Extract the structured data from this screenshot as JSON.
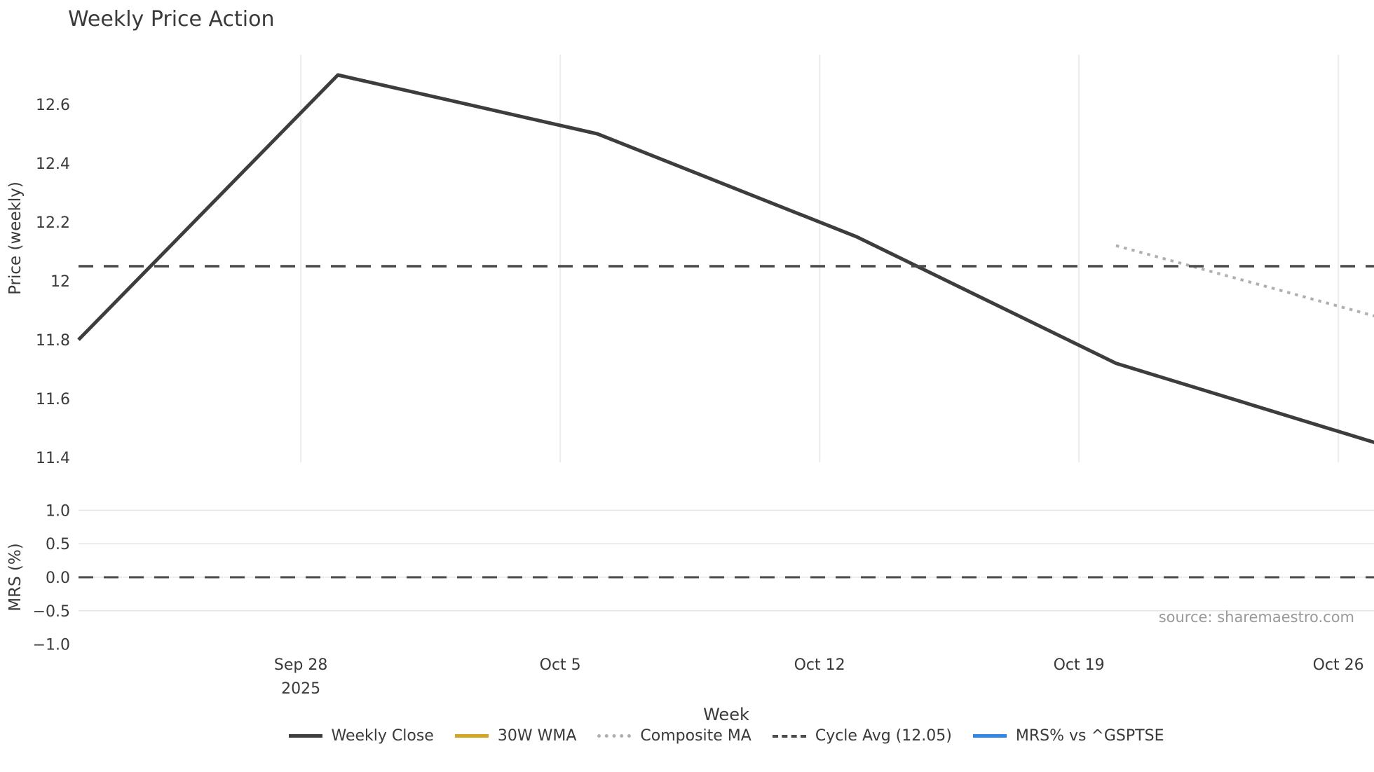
{
  "chart_data": {
    "type": "line",
    "title": "Weekly Price Action",
    "xlabel": "Week",
    "source": "source: sharemaestro.com",
    "x_unit": "days since week of Sep 22 2025",
    "x_ticks": [
      {
        "day": 6,
        "lines": [
          "Sep 28",
          "2025"
        ]
      },
      {
        "day": 13,
        "lines": [
          "Oct 5"
        ]
      },
      {
        "day": 20,
        "lines": [
          "Oct 12"
        ]
      },
      {
        "day": 27,
        "lines": [
          "Oct 19"
        ]
      },
      {
        "day": 34,
        "lines": [
          "Oct 26"
        ]
      }
    ],
    "panels": [
      {
        "id": "price",
        "ylabel": "Price (weekly)",
        "ylim": [
          11.39,
          12.77
        ],
        "grid": "vertical",
        "y_ticks": [
          {
            "value": 12.6,
            "label": "12.6"
          },
          {
            "value": 12.4,
            "label": "12.4"
          },
          {
            "value": 12.2,
            "label": "12.2"
          },
          {
            "value": 12.0,
            "label": "12"
          },
          {
            "value": 11.8,
            "label": "11.8"
          },
          {
            "value": 11.6,
            "label": "11.6"
          },
          {
            "value": 11.4,
            "label": "11.4"
          }
        ],
        "series": [
          {
            "name": "Weekly Close",
            "kind": "line",
            "style": "solid",
            "color": "#3d3d3d",
            "width": 5,
            "x_days": [
              0,
              7,
              14,
              21,
              28,
              35
            ],
            "x_weeks": [
              "Sep 22",
              "Sep 29",
              "Oct 6",
              "Oct 13",
              "Oct 20",
              "Oct 27"
            ],
            "values": [
              11.8,
              12.7,
              12.5,
              12.15,
              11.72,
              11.45
            ]
          },
          {
            "name": "Composite MA",
            "kind": "line",
            "style": "dotted",
            "color": "#b0b0b0",
            "width": 4,
            "x_days": [
              28,
              35
            ],
            "x_weeks": [
              "Oct 20",
              "Oct 27"
            ],
            "values": [
              12.12,
              11.88
            ]
          },
          {
            "name": "Cycle Avg",
            "kind": "hline",
            "style": "dashed",
            "color": "#4a4a4a",
            "width": 3.5,
            "value": 12.05
          }
        ]
      },
      {
        "id": "mrs",
        "ylabel": "MRS (%)",
        "ylim": [
          -1.15,
          1.15
        ],
        "grid": "horizontal",
        "y_ticks": [
          {
            "value": 1.0,
            "label": "1.0",
            "gridline": true
          },
          {
            "value": 0.5,
            "label": "0.5",
            "gridline": true
          },
          {
            "value": 0.0,
            "label": "0.0",
            "gridline": true
          },
          {
            "value": -0.5,
            "label": "−0.5",
            "gridline": true
          },
          {
            "value": -1.0,
            "label": "−1.0",
            "gridline": false
          }
        ],
        "series": [
          {
            "name": "Zero line",
            "kind": "hline",
            "style": "dashed",
            "color": "#4a4a4a",
            "width": 3,
            "value": 0.0
          }
        ]
      }
    ],
    "legend": [
      {
        "label": "Weekly Close",
        "style": "solid",
        "color": "#3d3d3d"
      },
      {
        "label": "30W WMA",
        "style": "solid",
        "color": "#d4a520"
      },
      {
        "label": "Composite MA",
        "style": "dotted",
        "color": "#b0b0b0"
      },
      {
        "label": "Cycle Avg (12.05)",
        "style": "dashed",
        "color": "#4a4a4a"
      },
      {
        "label": "MRS% vs ^GSPTSE",
        "style": "solid",
        "color": "#2f86e6"
      }
    ],
    "colors": {
      "text": "#3a3a3a",
      "grid_vertical": "#ececec",
      "grid_horizontal": "#e7e7e7",
      "source_text": "#9a9a9a",
      "background": "#ffffff"
    }
  }
}
